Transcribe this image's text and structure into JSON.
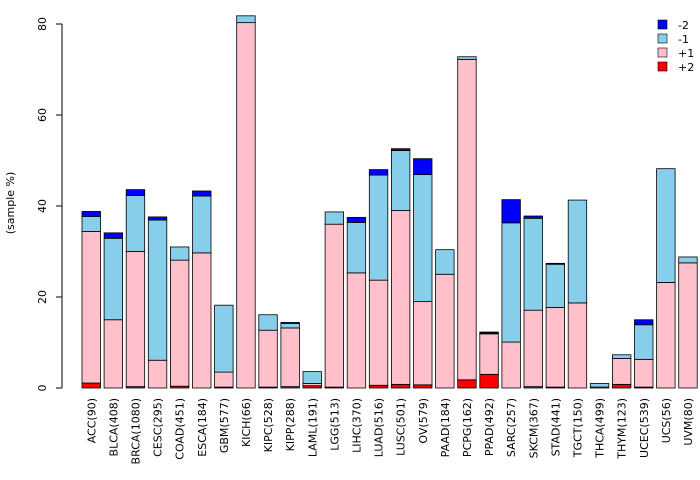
{
  "chart_data": {
    "type": "bar",
    "stacked": true,
    "ylabel": "(sample %)",
    "xlabel": "",
    "title": "",
    "ylim": [
      0,
      80
    ],
    "yticks": [
      0,
      20,
      40,
      60,
      80
    ],
    "categories": [
      "ACC(90)",
      "BLCA(408)",
      "BRCA(1080)",
      "CESC(295)",
      "COAD(451)",
      "ESCA(184)",
      "GBM(577)",
      "KICH(66)",
      "KIPC(528)",
      "KIPP(288)",
      "LAML(191)",
      "LGG(513)",
      "LIHC(370)",
      "LUAD(516)",
      "LUSC(501)",
      "OV(579)",
      "PAAD(184)",
      "PCPG(162)",
      "PPAD(492)",
      "SARC(257)",
      "SKCM(367)",
      "STAD(441)",
      "TGCT(150)",
      "THCA(499)",
      "THYM(123)",
      "UCEC(539)",
      "UCS(56)",
      "UVM(80)"
    ],
    "series": [
      {
        "name": "+2",
        "color": "#ff0000",
        "values": [
          1.1,
          0,
          0.3,
          0,
          0.4,
          0,
          0.2,
          0,
          0.2,
          0.3,
          0.5,
          0.2,
          0,
          0.6,
          0.8,
          0.7,
          0,
          1.8,
          3.0,
          0,
          0.3,
          0.2,
          0,
          0,
          0.8,
          0.2,
          0,
          0
        ]
      },
      {
        "name": "+1",
        "color": "#ffc0cb",
        "values": [
          33.3,
          15.0,
          29.7,
          6.1,
          27.7,
          29.7,
          3.3,
          80.3,
          12.5,
          12.9,
          0.5,
          35.8,
          25.3,
          23.1,
          38.2,
          18.3,
          25.0,
          70.4,
          8.9,
          10.1,
          16.8,
          17.5,
          18.7,
          0.2,
          5.7,
          6.1,
          23.2,
          27.5
        ]
      },
      {
        "name": "-1",
        "color": "#87ceeb",
        "values": [
          3.3,
          17.9,
          12.3,
          30.8,
          2.9,
          12.5,
          14.7,
          1.5,
          3.4,
          1.0,
          2.6,
          2.7,
          11.1,
          23.1,
          13.2,
          27.9,
          5.4,
          0.6,
          0.2,
          26.2,
          20.2,
          9.5,
          22.6,
          0.8,
          0.8,
          7.6,
          25.0,
          1.3
        ]
      },
      {
        "name": "-2",
        "color": "#0000ff",
        "values": [
          1.1,
          1.2,
          1.3,
          0.7,
          0,
          1.1,
          0,
          0,
          0,
          0.2,
          0,
          0,
          1.1,
          1.2,
          0.4,
          3.5,
          0,
          0,
          0.2,
          5.1,
          0.5,
          0.2,
          0,
          0,
          0,
          1.1,
          0,
          0
        ]
      }
    ],
    "legend": {
      "placement": "top-right",
      "entries": [
        {
          "label": "-2",
          "color": "#0000ff"
        },
        {
          "label": "-1",
          "color": "#87ceeb"
        },
        {
          "label": "+1",
          "color": "#ffc0cb"
        },
        {
          "label": "+2",
          "color": "#ff0000"
        }
      ]
    }
  }
}
